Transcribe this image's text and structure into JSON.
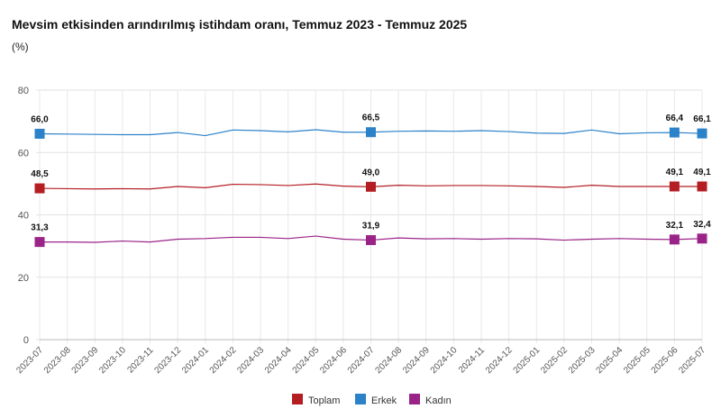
{
  "header": {
    "title": "Mevsim etkisinden arındırılmış istihdam oranı, Temmuz 2023 - Temmuz 2025",
    "subtitle": "(%)"
  },
  "chart_data": {
    "type": "line",
    "title": "Mevsim etkisinden arındırılmış istihdam oranı, Temmuz 2023 - Temmuz 2025",
    "ylabel": "(%)",
    "ylim": [
      0,
      80
    ],
    "yticks": [
      0,
      20,
      40,
      60,
      80
    ],
    "grid": true,
    "legend_position": "bottom",
    "x": [
      "2023-07",
      "2023-08",
      "2023-09",
      "2023-10",
      "2023-11",
      "2023-12",
      "2024-01",
      "2024-02",
      "2024-03",
      "2024-04",
      "2024-05",
      "2024-06",
      "2024-07",
      "2024-08",
      "2024-09",
      "2024-10",
      "2024-11",
      "2024-12",
      "2025-01",
      "2025-02",
      "2025-03",
      "2025-04",
      "2025-05",
      "2025-06",
      "2025-07"
    ],
    "series": [
      {
        "name": "Toplam",
        "color": "#b41e23",
        "values": [
          48.5,
          48.4,
          48.3,
          48.4,
          48.3,
          49.1,
          48.7,
          49.8,
          49.7,
          49.4,
          49.9,
          49.2,
          49.0,
          49.5,
          49.3,
          49.4,
          49.4,
          49.3,
          49.1,
          48.8,
          49.5,
          49.1,
          49.1,
          49.1,
          49.1
        ],
        "labels": [
          {
            "index": 0,
            "text": "48,5"
          },
          {
            "index": 12,
            "text": "49,0"
          },
          {
            "index": 23,
            "text": "49,1"
          },
          {
            "index": 24,
            "text": "49,1"
          }
        ]
      },
      {
        "name": "Erkek",
        "color": "#2b82c9",
        "values": [
          66.0,
          65.9,
          65.8,
          65.7,
          65.7,
          66.4,
          65.4,
          67.2,
          67.0,
          66.6,
          67.3,
          66.5,
          66.5,
          66.8,
          66.9,
          66.8,
          67.0,
          66.7,
          66.2,
          66.1,
          67.2,
          66.0,
          66.3,
          66.4,
          66.1
        ],
        "labels": [
          {
            "index": 0,
            "text": "66,0"
          },
          {
            "index": 12,
            "text": "66,5"
          },
          {
            "index": 23,
            "text": "66,4"
          },
          {
            "index": 24,
            "text": "66,1"
          }
        ]
      },
      {
        "name": "Kadın",
        "color": "#9a2388",
        "values": [
          31.3,
          31.3,
          31.2,
          31.6,
          31.3,
          32.2,
          32.4,
          32.8,
          32.8,
          32.4,
          33.2,
          32.2,
          31.9,
          32.6,
          32.3,
          32.4,
          32.2,
          32.4,
          32.3,
          31.9,
          32.2,
          32.4,
          32.2,
          32.1,
          32.4
        ],
        "labels": [
          {
            "index": 0,
            "text": "31,3"
          },
          {
            "index": 12,
            "text": "31,9"
          },
          {
            "index": 23,
            "text": "32,1"
          },
          {
            "index": 24,
            "text": "32,4"
          }
        ]
      }
    ]
  }
}
